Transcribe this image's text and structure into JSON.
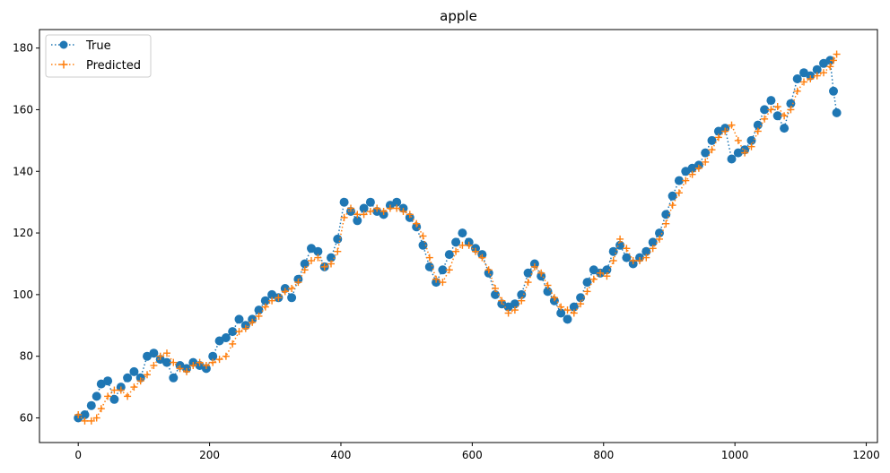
{
  "chart_data": {
    "type": "line",
    "title": "apple",
    "xlabel": "",
    "ylabel": "",
    "xlim": [
      -59,
      1217
    ],
    "ylim": [
      52,
      186
    ],
    "xticks": [
      0,
      200,
      400,
      600,
      800,
      1000,
      1200
    ],
    "yticks": [
      60,
      80,
      100,
      120,
      140,
      160,
      180
    ],
    "grid": false,
    "legend_position": "top-left",
    "series": [
      {
        "name": "True",
        "color": "#1f77b4",
        "marker": "circle",
        "linestyle": "dotted",
        "x": [
          0,
          10,
          20,
          28,
          35,
          45,
          55,
          65,
          75,
          85,
          95,
          105,
          115,
          125,
          135,
          145,
          155,
          165,
          175,
          185,
          195,
          205,
          215,
          225,
          235,
          245,
          255,
          265,
          275,
          285,
          295,
          305,
          315,
          325,
          335,
          345,
          355,
          365,
          375,
          385,
          395,
          405,
          415,
          425,
          435,
          445,
          455,
          465,
          475,
          485,
          495,
          505,
          515,
          525,
          535,
          545,
          555,
          565,
          575,
          585,
          595,
          605,
          615,
          625,
          635,
          645,
          655,
          665,
          675,
          685,
          695,
          705,
          715,
          725,
          735,
          745,
          755,
          765,
          775,
          785,
          795,
          805,
          815,
          825,
          835,
          845,
          855,
          865,
          875,
          885,
          895,
          905,
          915,
          925,
          935,
          945,
          955,
          965,
          975,
          985,
          995,
          1005,
          1015,
          1025,
          1035,
          1045,
          1055,
          1065,
          1075,
          1085,
          1095,
          1105,
          1115,
          1125,
          1135,
          1145,
          1150,
          1155
        ],
        "y": [
          60,
          61,
          64,
          67,
          71,
          72,
          66,
          70,
          73,
          75,
          73,
          80,
          81,
          79,
          78,
          73,
          77,
          76,
          78,
          77,
          76,
          80,
          85,
          86,
          88,
          92,
          90,
          92,
          95,
          98,
          100,
          99,
          102,
          99,
          105,
          110,
          115,
          114,
          109,
          112,
          118,
          130,
          127,
          124,
          128,
          130,
          127,
          126,
          129,
          130,
          128,
          125,
          122,
          116,
          109,
          104,
          108,
          113,
          117,
          120,
          117,
          115,
          113,
          107,
          100,
          97,
          96,
          97,
          100,
          107,
          110,
          106,
          101,
          98,
          94,
          92,
          96,
          99,
          104,
          108,
          107,
          108,
          114,
          116,
          112,
          110,
          112,
          114,
          117,
          120,
          126,
          132,
          137,
          140,
          141,
          142,
          146,
          150,
          153,
          154,
          144,
          146,
          147,
          150,
          155,
          160,
          163,
          158,
          154,
          162,
          170,
          172,
          171,
          173,
          175,
          176,
          166,
          159
        ]
      },
      {
        "name": "Predicted",
        "color": "#ff7f0e",
        "marker": "plus",
        "linestyle": "dotted",
        "x": [
          0,
          10,
          20,
          28,
          35,
          45,
          55,
          65,
          75,
          85,
          95,
          105,
          115,
          125,
          135,
          145,
          155,
          165,
          175,
          185,
          195,
          205,
          215,
          225,
          235,
          245,
          255,
          265,
          275,
          285,
          295,
          305,
          315,
          325,
          335,
          345,
          355,
          365,
          375,
          385,
          395,
          405,
          415,
          425,
          435,
          445,
          455,
          465,
          475,
          485,
          495,
          505,
          515,
          525,
          535,
          545,
          555,
          565,
          575,
          585,
          595,
          605,
          615,
          625,
          635,
          645,
          655,
          665,
          675,
          685,
          695,
          705,
          715,
          725,
          735,
          745,
          755,
          765,
          775,
          785,
          795,
          805,
          815,
          825,
          835,
          845,
          855,
          865,
          875,
          885,
          895,
          905,
          915,
          925,
          935,
          945,
          955,
          965,
          975,
          985,
          995,
          1005,
          1015,
          1025,
          1035,
          1045,
          1055,
          1065,
          1075,
          1085,
          1095,
          1105,
          1115,
          1125,
          1135,
          1145,
          1150,
          1155
        ],
        "y": [
          61,
          59,
          59,
          60,
          63,
          67,
          69,
          69,
          67,
          70,
          72,
          74,
          77,
          80,
          81,
          78,
          76,
          75,
          77,
          78,
          77,
          78,
          79,
          80,
          84,
          88,
          89,
          91,
          93,
          96,
          98,
          99,
          101,
          102,
          104,
          108,
          111,
          112,
          109,
          110,
          114,
          125,
          128,
          126,
          126,
          127,
          128,
          127,
          128,
          128,
          127,
          126,
          123,
          119,
          112,
          105,
          104,
          108,
          114,
          116,
          116,
          114,
          112,
          108,
          102,
          98,
          94,
          95,
          98,
          104,
          109,
          107,
          103,
          99,
          96,
          95,
          94,
          97,
          101,
          105,
          107,
          106,
          111,
          118,
          115,
          111,
          111,
          112,
          115,
          118,
          123,
          129,
          133,
          137,
          139,
          141,
          143,
          147,
          151,
          153,
          155,
          150,
          146,
          148,
          153,
          157,
          160,
          161,
          158,
          160,
          166,
          169,
          170,
          171,
          172,
          174,
          176,
          178
        ]
      }
    ]
  }
}
